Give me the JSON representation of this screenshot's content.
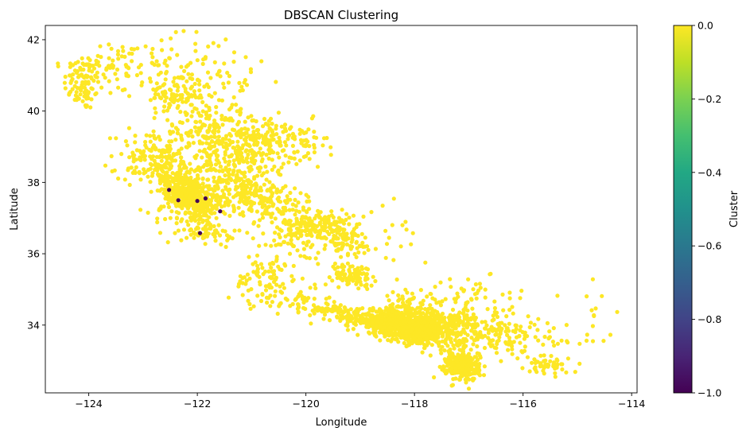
{
  "chart_data": {
    "type": "scatter",
    "title": "DBSCAN Clustering",
    "xlabel": "Longitude",
    "ylabel": "Latitude",
    "xlim": [
      -124.8,
      -113.9
    ],
    "ylim": [
      32.1,
      42.4
    ],
    "xticks": [
      -124,
      -122,
      -120,
      -118,
      -116,
      -114
    ],
    "yticks": [
      34,
      36,
      38,
      40,
      42
    ],
    "xtick_labels": [
      "−124",
      "−122",
      "−120",
      "−118",
      "−116",
      "−114"
    ],
    "ytick_labels": [
      "34",
      "36",
      "38",
      "40",
      "42"
    ],
    "grid": false,
    "colorbar": {
      "label": "Cluster",
      "colormap": "viridis",
      "range": [
        -1.0,
        0.0
      ],
      "ticks": [
        0.0,
        -0.2,
        -0.4,
        -0.6,
        -0.8,
        -1.0
      ],
      "tick_labels": [
        "0.0",
        "−0.2",
        "−0.4",
        "−0.6",
        "−0.8",
        "−1.0"
      ]
    },
    "series": [
      {
        "cluster": 0,
        "color": "#fde725",
        "regions": [
          {
            "x": -124.1,
            "y": 40.8,
            "sx": 0.18,
            "sy": 0.4,
            "n": 90
          },
          {
            "x": -123.6,
            "y": 41.2,
            "sx": 0.45,
            "sy": 0.45,
            "n": 60
          },
          {
            "x": -122.4,
            "y": 40.5,
            "sx": 0.25,
            "sy": 0.3,
            "n": 70
          },
          {
            "x": -122.7,
            "y": 41.4,
            "sx": 0.5,
            "sy": 0.35,
            "n": 50
          },
          {
            "x": -121.6,
            "y": 40.8,
            "sx": 0.5,
            "sy": 0.6,
            "n": 60
          },
          {
            "x": -122.2,
            "y": 39.6,
            "sx": 0.35,
            "sy": 0.6,
            "n": 90
          },
          {
            "x": -121.7,
            "y": 39.5,
            "sx": 0.2,
            "sy": 0.25,
            "n": 60
          },
          {
            "x": -121.2,
            "y": 38.8,
            "sx": 0.4,
            "sy": 0.45,
            "n": 220
          },
          {
            "x": -120.8,
            "y": 39.3,
            "sx": 0.4,
            "sy": 0.3,
            "n": 80
          },
          {
            "x": -120.1,
            "y": 39.0,
            "sx": 0.25,
            "sy": 0.35,
            "n": 50
          },
          {
            "x": -122.6,
            "y": 38.4,
            "sx": 0.35,
            "sy": 0.3,
            "n": 160
          },
          {
            "x": -122.9,
            "y": 38.9,
            "sx": 0.3,
            "sy": 0.3,
            "n": 50
          },
          {
            "x": -122.25,
            "y": 37.8,
            "sx": 0.18,
            "sy": 0.2,
            "n": 220
          },
          {
            "x": -121.95,
            "y": 37.35,
            "sx": 0.2,
            "sy": 0.18,
            "n": 170
          },
          {
            "x": -122.2,
            "y": 37.2,
            "sx": 0.35,
            "sy": 0.35,
            "n": 50
          },
          {
            "x": -121.8,
            "y": 36.6,
            "sx": 0.25,
            "sy": 0.15,
            "n": 60
          },
          {
            "x": -121.4,
            "y": 37.9,
            "sx": 0.4,
            "sy": 0.3,
            "n": 120
          },
          {
            "x": -121.0,
            "y": 37.6,
            "sx": 0.3,
            "sy": 0.25,
            "n": 100
          },
          {
            "x": -120.5,
            "y": 37.35,
            "sx": 0.35,
            "sy": 0.3,
            "n": 80
          },
          {
            "x": -119.8,
            "y": 36.75,
            "sx": 0.3,
            "sy": 0.25,
            "n": 170
          },
          {
            "x": -120.4,
            "y": 36.3,
            "sx": 0.35,
            "sy": 0.35,
            "n": 40
          },
          {
            "x": -119.3,
            "y": 36.3,
            "sx": 0.3,
            "sy": 0.25,
            "n": 80
          },
          {
            "x": -119.1,
            "y": 35.4,
            "sx": 0.2,
            "sy": 0.15,
            "n": 90
          },
          {
            "x": -120.7,
            "y": 35.3,
            "sx": 0.3,
            "sy": 0.3,
            "n": 70
          },
          {
            "x": -120.3,
            "y": 34.7,
            "sx": 0.35,
            "sy": 0.15,
            "n": 50
          },
          {
            "x": -119.6,
            "y": 34.42,
            "sx": 0.35,
            "sy": 0.05,
            "n": 60
          },
          {
            "x": -119.0,
            "y": 34.25,
            "sx": 0.3,
            "sy": 0.12,
            "n": 80
          },
          {
            "x": -118.35,
            "y": 34.05,
            "sx": 0.35,
            "sy": 0.18,
            "n": 500
          },
          {
            "x": -117.9,
            "y": 33.75,
            "sx": 0.22,
            "sy": 0.15,
            "n": 230
          },
          {
            "x": -117.4,
            "y": 34.0,
            "sx": 0.3,
            "sy": 0.25,
            "n": 180
          },
          {
            "x": -118.2,
            "y": 34.6,
            "sx": 0.3,
            "sy": 0.2,
            "n": 60
          },
          {
            "x": -117.1,
            "y": 32.8,
            "sx": 0.15,
            "sy": 0.18,
            "n": 220
          },
          {
            "x": -117.2,
            "y": 33.3,
            "sx": 0.2,
            "sy": 0.3,
            "n": 90
          },
          {
            "x": -116.5,
            "y": 33.8,
            "sx": 0.35,
            "sy": 0.25,
            "n": 80
          },
          {
            "x": -116.0,
            "y": 33.6,
            "sx": 0.4,
            "sy": 0.3,
            "n": 50
          },
          {
            "x": -115.55,
            "y": 32.85,
            "sx": 0.2,
            "sy": 0.12,
            "n": 50
          },
          {
            "x": -117.0,
            "y": 34.7,
            "sx": 0.5,
            "sy": 0.35,
            "n": 60
          },
          {
            "x": -114.6,
            "y": 34.2,
            "sx": 0.2,
            "sy": 0.4,
            "n": 15
          },
          {
            "x": -118.5,
            "y": 36.5,
            "sx": 0.4,
            "sy": 0.6,
            "n": 20
          }
        ]
      },
      {
        "cluster": -1,
        "color": "#440154",
        "points": [
          [
            -122.52,
            37.79
          ],
          [
            -121.58,
            37.19
          ],
          [
            -121.95,
            36.58
          ],
          [
            -122.0,
            37.48
          ],
          [
            -122.35,
            37.5
          ],
          [
            -121.85,
            37.55
          ]
        ]
      }
    ]
  }
}
